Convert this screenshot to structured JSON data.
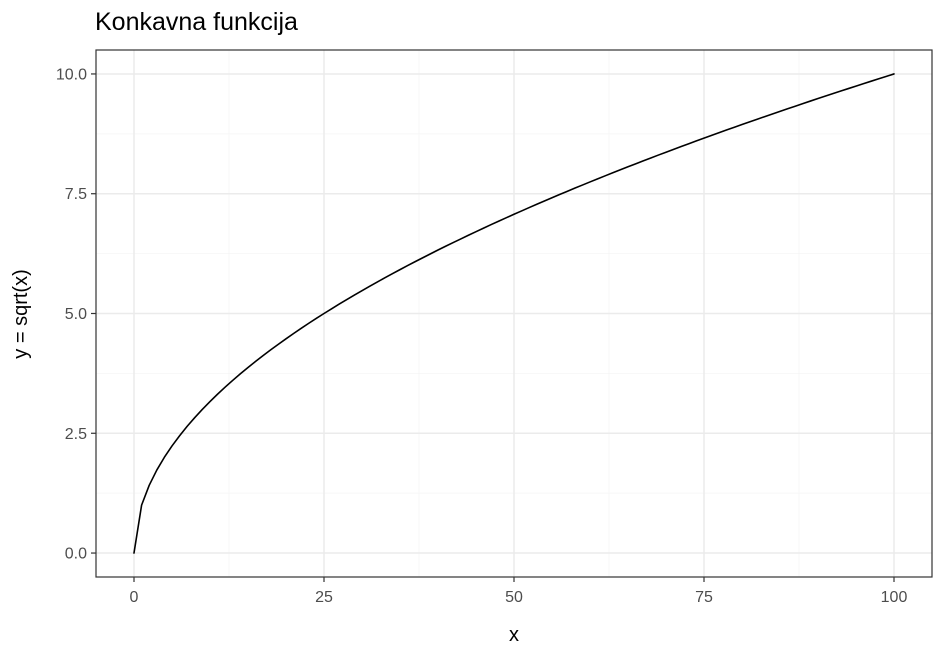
{
  "chart_data": {
    "type": "line",
    "title": "Konkavna funkcija",
    "xlabel": "x",
    "ylabel": "y = sqrt(x)",
    "xlim": [
      -5,
      105
    ],
    "ylim": [
      -0.5,
      10.5
    ],
    "x_ticks": [
      0,
      25,
      50,
      75,
      100
    ],
    "x_tick_labels": [
      "0",
      "25",
      "50",
      "75",
      "100"
    ],
    "y_ticks": [
      0,
      2.5,
      5,
      7.5,
      10
    ],
    "y_tick_labels": [
      "0.0",
      "2.5",
      "5.0",
      "7.5",
      "10.0"
    ],
    "x_minor_ticks": [
      12.5,
      37.5,
      62.5,
      87.5
    ],
    "y_minor_ticks": [
      1.25,
      3.75,
      6.25,
      8.75
    ],
    "grid": true,
    "legend": "none",
    "series": [
      {
        "x": [
          0,
          1,
          2,
          3,
          4,
          5,
          6,
          7,
          8,
          9,
          10,
          11,
          12,
          13,
          14,
          15,
          16,
          17,
          18,
          19,
          20,
          21,
          22,
          23,
          24,
          25,
          26,
          27,
          28,
          29,
          30,
          31,
          32,
          33,
          34,
          35,
          36,
          37,
          38,
          39,
          40,
          41,
          42,
          43,
          44,
          45,
          46,
          47,
          48,
          49,
          50,
          51,
          52,
          53,
          54,
          55,
          56,
          57,
          58,
          59,
          60,
          61,
          62,
          63,
          64,
          65,
          66,
          67,
          68,
          69,
          70,
          71,
          72,
          73,
          74,
          75,
          76,
          77,
          78,
          79,
          80,
          81,
          82,
          83,
          84,
          85,
          86,
          87,
          88,
          89,
          90,
          91,
          92,
          93,
          94,
          95,
          96,
          97,
          98,
          99,
          100
        ],
        "y": [
          0,
          1,
          1.414,
          1.732,
          2,
          2.236,
          2.449,
          2.646,
          2.828,
          3,
          3.162,
          3.317,
          3.464,
          3.606,
          3.742,
          3.873,
          4,
          4.123,
          4.243,
          4.359,
          4.472,
          4.583,
          4.69,
          4.796,
          4.899,
          5,
          5.099,
          5.196,
          5.292,
          5.385,
          5.477,
          5.568,
          5.657,
          5.745,
          5.831,
          5.916,
          6,
          6.083,
          6.164,
          6.245,
          6.325,
          6.403,
          6.481,
          6.557,
          6.633,
          6.708,
          6.782,
          6.856,
          6.928,
          7,
          7.071,
          7.141,
          7.211,
          7.28,
          7.348,
          7.416,
          7.483,
          7.55,
          7.616,
          7.681,
          7.746,
          7.81,
          7.874,
          7.937,
          8,
          8.062,
          8.124,
          8.185,
          8.246,
          8.307,
          8.367,
          8.426,
          8.485,
          8.544,
          8.602,
          8.66,
          8.718,
          8.775,
          8.832,
          8.888,
          8.944,
          9,
          9.055,
          9.11,
          9.165,
          9.22,
          9.274,
          9.327,
          9.381,
          9.434,
          9.487,
          9.539,
          9.592,
          9.644,
          9.695,
          9.747,
          9.798,
          9.849,
          9.899,
          9.95,
          10
        ],
        "color": "#000000"
      }
    ],
    "colors": {
      "panel_border": "#333333",
      "grid_major": "#ebebeb",
      "grid_minor": "#f5f5f5",
      "line": "#000000",
      "tick_text": "#4d4d4d"
    }
  }
}
